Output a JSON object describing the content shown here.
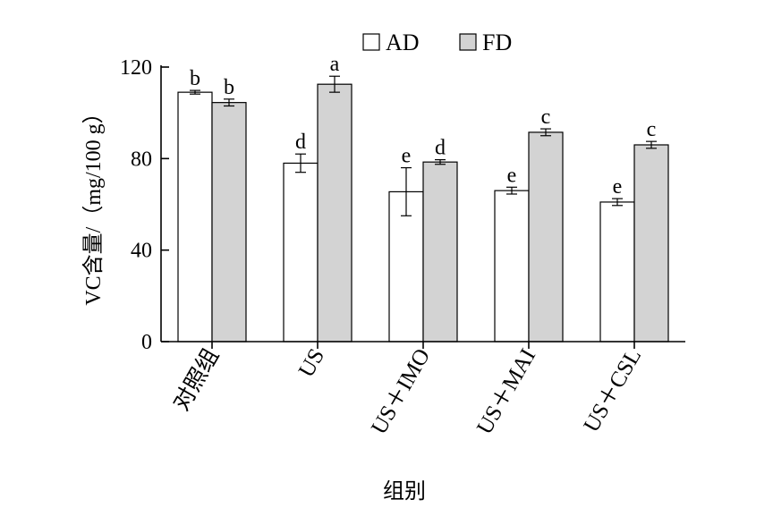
{
  "chart_data": {
    "type": "bar",
    "title": "",
    "xlabel": "组别",
    "ylabel": "VC含量/（mg/100 g）",
    "ylim": [
      0,
      120
    ],
    "yticks": [
      0,
      40,
      80,
      120
    ],
    "grid": false,
    "legend_position": "top",
    "categories": [
      "对照组",
      "US",
      "US＋IMO",
      "US＋MAI",
      "US＋CSL"
    ],
    "series": [
      {
        "name": "AD",
        "color": "#ffffff",
        "values": [
          109,
          78,
          65.5,
          66,
          61
        ],
        "errors": [
          0.8,
          4,
          10.5,
          1.5,
          1.5
        ],
        "letters": [
          "b",
          "d",
          "e",
          "e",
          "e"
        ]
      },
      {
        "name": "FD",
        "color": "#d3d3d3",
        "values": [
          104.5,
          112.5,
          78.5,
          91.5,
          86
        ],
        "errors": [
          1.5,
          3.5,
          1,
          1.5,
          1.5
        ],
        "letters": [
          "b",
          "a",
          "d",
          "c",
          "c"
        ]
      }
    ]
  }
}
